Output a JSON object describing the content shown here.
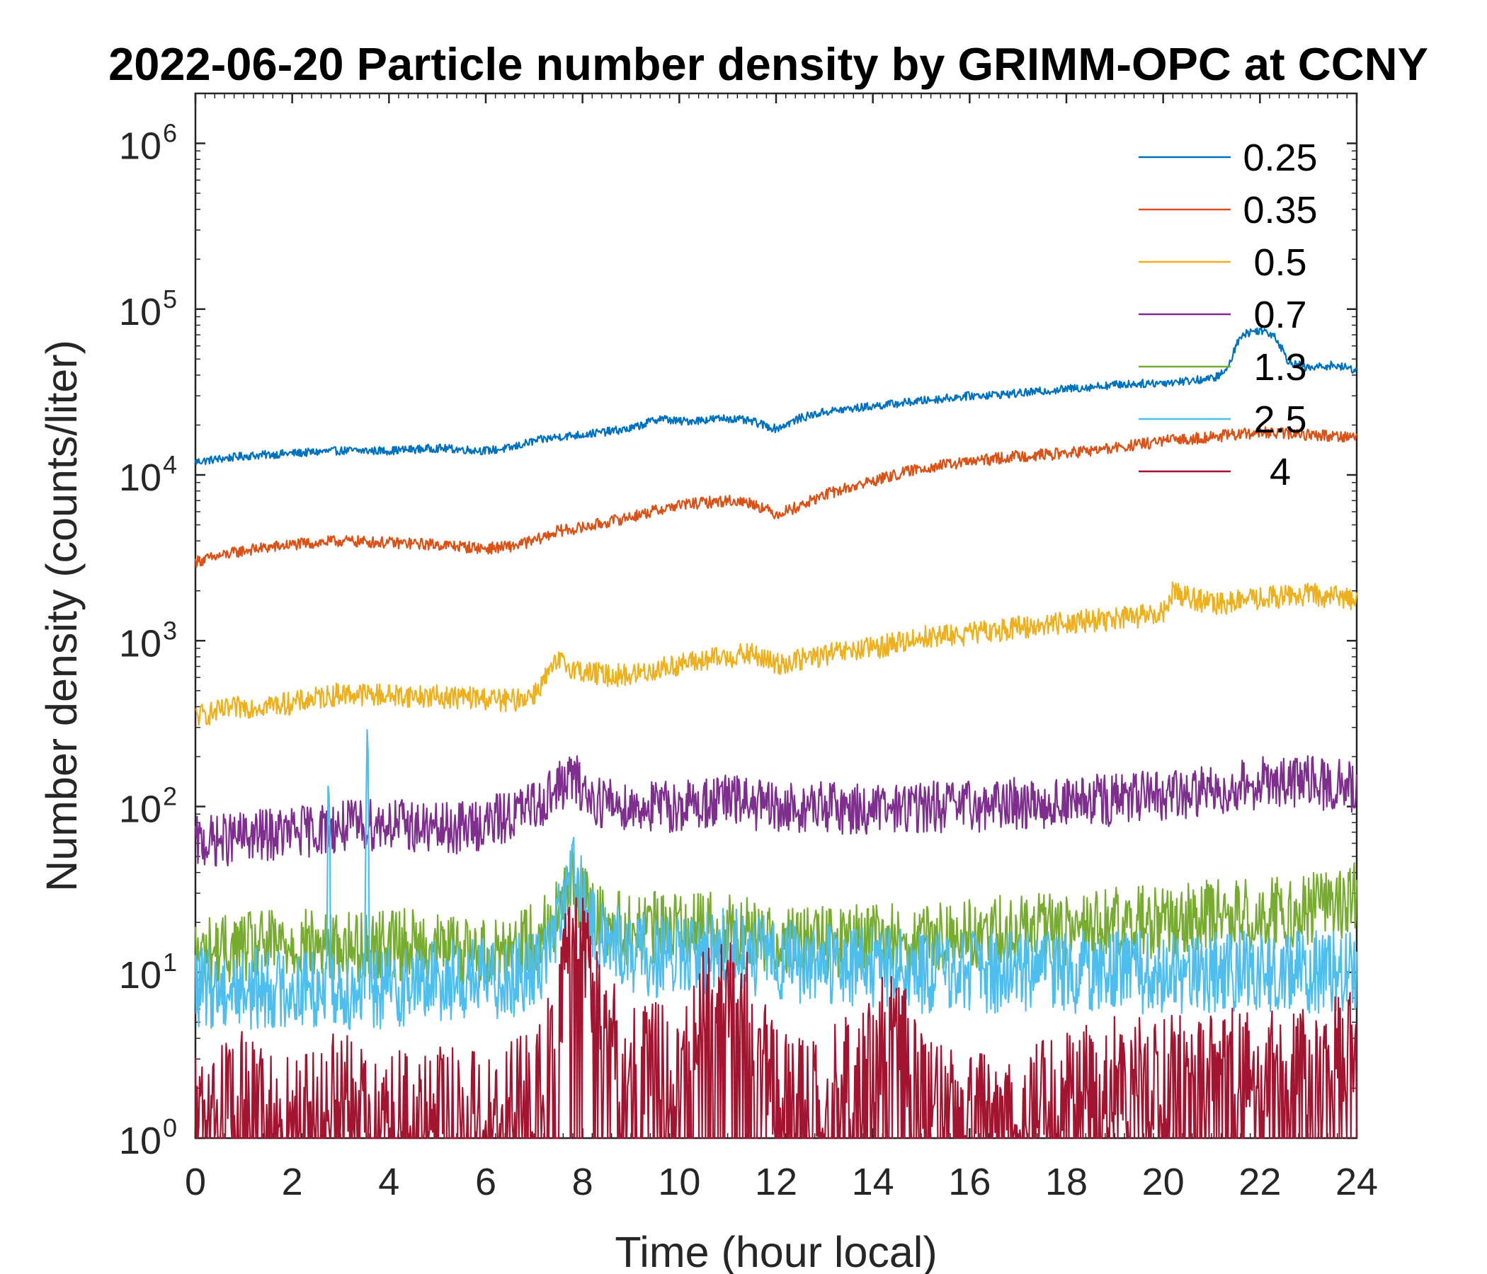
{
  "chart_data": {
    "type": "line",
    "title": "2022-06-20 Particle number density by GRIMM-OPC at CCNY",
    "xlabel": "Time (hour local)",
    "ylabel": "Number density (counts/liter)",
    "xlim": [
      0,
      24
    ],
    "ylim": [
      1,
      2000000
    ],
    "yscale": "log",
    "x_ticks": [
      0,
      2,
      4,
      6,
      8,
      10,
      12,
      14,
      16,
      18,
      20,
      22,
      24
    ],
    "x_tick_labels": [
      "0",
      "2",
      "4",
      "6",
      "8",
      "10",
      "12",
      "14",
      "16",
      "18",
      "20",
      "22",
      "24"
    ],
    "y_ticks": [
      1,
      10,
      100,
      1000,
      10000,
      100000,
      1000000
    ],
    "y_tick_labels": [
      {
        "base": "10",
        "exp": "0"
      },
      {
        "base": "10",
        "exp": "1"
      },
      {
        "base": "10",
        "exp": "2"
      },
      {
        "base": "10",
        "exp": "3"
      },
      {
        "base": "10",
        "exp": "4"
      },
      {
        "base": "10",
        "exp": "5"
      },
      {
        "base": "10",
        "exp": "6"
      }
    ],
    "legend_position": "top-right",
    "grid": false,
    "series": [
      {
        "name": "0.25",
        "color": "#0072BD",
        "x": [
          0,
          1,
          2,
          3,
          4,
          5,
          6,
          6.5,
          7,
          7.5,
          8,
          9,
          9.6,
          10,
          11,
          11.5,
          12,
          12.5,
          13,
          14,
          15,
          16,
          17,
          18,
          19,
          20,
          21,
          21.3,
          21.6,
          22,
          22.3,
          22.6,
          23,
          23.5,
          24
        ],
        "y": [
          12000,
          13000,
          13500,
          14000,
          14000,
          14500,
          14000,
          14500,
          16000,
          17000,
          17500,
          19000,
          22000,
          21000,
          22000,
          21000,
          19000,
          22000,
          24000,
          26000,
          28000,
          30000,
          31000,
          33000,
          35000,
          36000,
          38000,
          42000,
          70000,
          75000,
          70000,
          48000,
          44000,
          46000,
          43000
        ]
      },
      {
        "name": "0.35",
        "color": "#D95319",
        "x": [
          0,
          1,
          2,
          3,
          4,
          5,
          6,
          6.5,
          7,
          7.5,
          8,
          9,
          10,
          11,
          11.5,
          12,
          12.5,
          13,
          14,
          15,
          16,
          17,
          18,
          19,
          20,
          21,
          22,
          23,
          24
        ],
        "y": [
          3000,
          3500,
          3800,
          4000,
          3900,
          3800,
          3600,
          3700,
          4000,
          4600,
          4800,
          5600,
          6600,
          7000,
          6800,
          5800,
          6500,
          7600,
          9200,
          11000,
          12000,
          13000,
          13500,
          14500,
          16000,
          17000,
          18000,
          17500,
          17000
        ]
      },
      {
        "name": "0.5",
        "color": "#EDB120",
        "x": [
          0,
          1,
          2,
          3,
          4,
          5,
          6,
          6.5,
          7,
          7.5,
          8,
          8.5,
          9,
          10,
          11,
          11.5,
          12,
          13,
          14,
          15,
          16,
          17,
          18,
          19,
          20,
          20.2,
          21,
          22,
          23,
          24
        ],
        "y": [
          350,
          400,
          420,
          480,
          470,
          460,
          450,
          430,
          480,
          750,
          650,
          620,
          620,
          720,
          800,
          830,
          720,
          820,
          900,
          1050,
          1100,
          1200,
          1300,
          1350,
          1450,
          2000,
          1650,
          1800,
          1900,
          1800
        ]
      },
      {
        "name": "0.7",
        "color": "#7E2F8E",
        "x": [
          0,
          1,
          2,
          3,
          4,
          5,
          6,
          7,
          7.5,
          7.8,
          8.2,
          9,
          10,
          11,
          11.5,
          12,
          13,
          14,
          15,
          16,
          17,
          18,
          19,
          20,
          21,
          22,
          23,
          24
        ],
        "y": [
          60,
          65,
          70,
          75,
          80,
          72,
          78,
          100,
          130,
          150,
          110,
          100,
          100,
          110,
          105,
          95,
          100,
          95,
          100,
          100,
          105,
          105,
          110,
          115,
          125,
          140,
          140,
          130
        ]
      },
      {
        "name": "1.3",
        "color": "#77AC30",
        "x": [
          0,
          1,
          2,
          3,
          4,
          5,
          6,
          7,
          7.5,
          7.8,
          8.2,
          9,
          10,
          11,
          12,
          13,
          14,
          15,
          16,
          17,
          18,
          19,
          20,
          21,
          22,
          23,
          24
        ],
        "y": [
          13,
          14,
          15,
          14,
          15,
          14,
          13,
          16,
          22,
          35,
          22,
          18,
          19,
          18,
          16,
          15,
          16,
          15,
          17,
          18,
          18,
          20,
          20,
          22,
          22,
          24,
          28
        ]
      },
      {
        "name": "2.5",
        "color": "#4DBEEE",
        "x": [
          0,
          1,
          2,
          2.7,
          2.75,
          2.8,
          3,
          3.5,
          3.55,
          3.6,
          4,
          5,
          6,
          7,
          7.5,
          7.8,
          8.2,
          9,
          10,
          11,
          12,
          13,
          14,
          15,
          16,
          17,
          18,
          19,
          20,
          21,
          22,
          23,
          24
        ],
        "y": [
          8,
          8,
          8,
          8,
          270,
          8,
          8,
          8,
          420,
          8,
          8,
          9,
          9,
          10,
          20,
          40,
          18,
          13,
          12,
          14,
          12,
          11,
          11,
          10,
          10,
          10,
          10,
          10,
          10,
          10,
          10,
          10,
          10
        ]
      },
      {
        "name": "4",
        "color": "#A2142F",
        "x": [
          0,
          1,
          2,
          3,
          4,
          5,
          6,
          7,
          7.5,
          7.8,
          8,
          8.2,
          8.6,
          9,
          10,
          10.5,
          11,
          11.4,
          12,
          13,
          14,
          14.4,
          15,
          16,
          17,
          18,
          19,
          20,
          21,
          22,
          23,
          24
        ],
        "y": [
          1.5,
          2,
          1.5,
          2,
          1.5,
          1.6,
          1.5,
          2,
          6,
          18,
          20,
          8,
          4,
          3,
          3,
          7,
          9,
          6,
          2,
          2,
          3,
          6,
          2,
          1.5,
          1.5,
          2,
          2.5,
          2.5,
          3,
          3,
          3,
          3.5
        ]
      }
    ]
  }
}
